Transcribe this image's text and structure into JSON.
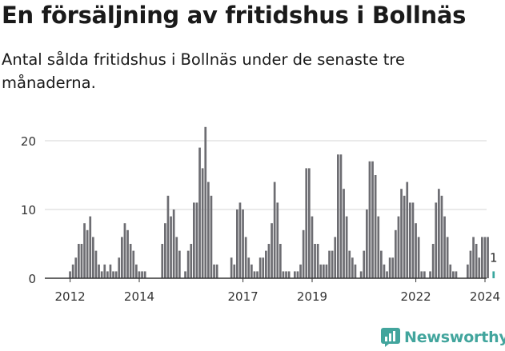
{
  "title": "En försäljning av fritidshus i Bollnäs",
  "subtitle": "Antal sålda fritidshus i Bollnäs under de senaste tre månaderna.",
  "brand": {
    "name": "Newsworthy",
    "icon": "newsworthy-logo-icon",
    "color": "#42a59d"
  },
  "colors": {
    "bar": "#6d6d72",
    "highlight": "#3aa79e",
    "grid": "#d6d6d6",
    "axis": "#333333"
  },
  "chart_data": {
    "type": "bar",
    "title": "En försäljning av fritidshus i Bollnäs",
    "xlabel": "",
    "ylabel": "",
    "ylim": [
      0,
      23
    ],
    "y_ticks": [
      0,
      10,
      20
    ],
    "x_tick_labels": [
      {
        "label": "2012",
        "date": "2012-01"
      },
      {
        "label": "2014",
        "date": "2014-01"
      },
      {
        "label": "2017",
        "date": "2017-01"
      },
      {
        "label": "2019",
        "date": "2019-01"
      },
      {
        "label": "2022",
        "date": "2022-01"
      },
      {
        "label": "2024",
        "date": "2024-01"
      }
    ],
    "grid": true,
    "start_month": "2011-12",
    "values": [
      0,
      1,
      2,
      3,
      5,
      5,
      8,
      7,
      9,
      6,
      4,
      2,
      1,
      2,
      1,
      2,
      1,
      1,
      3,
      6,
      8,
      7,
      5,
      4,
      2,
      1,
      1,
      1,
      0,
      0,
      0,
      0,
      0,
      5,
      8,
      12,
      9,
      10,
      6,
      4,
      0,
      1,
      4,
      5,
      11,
      11,
      19,
      16,
      22,
      14,
      12,
      2,
      2,
      0,
      0,
      0,
      0,
      3,
      2,
      10,
      11,
      10,
      6,
      3,
      2,
      1,
      1,
      3,
      3,
      4,
      5,
      8,
      14,
      11,
      5,
      1,
      1,
      1,
      0,
      1,
      1,
      2,
      7,
      16,
      16,
      9,
      5,
      5,
      2,
      2,
      2,
      4,
      4,
      6,
      18,
      18,
      13,
      9,
      4,
      3,
      2,
      0,
      1,
      4,
      10,
      17,
      17,
      15,
      9,
      4,
      2,
      1,
      3,
      3,
      7,
      9,
      13,
      12,
      14,
      11,
      11,
      8,
      6,
      1,
      1,
      0,
      1,
      5,
      11,
      13,
      12,
      9,
      6,
      2,
      1,
      1,
      0,
      0,
      0,
      2,
      4,
      6,
      5,
      3,
      6,
      6,
      6,
      0,
      1
    ],
    "highlight_last": true,
    "highlight_label": "1"
  }
}
